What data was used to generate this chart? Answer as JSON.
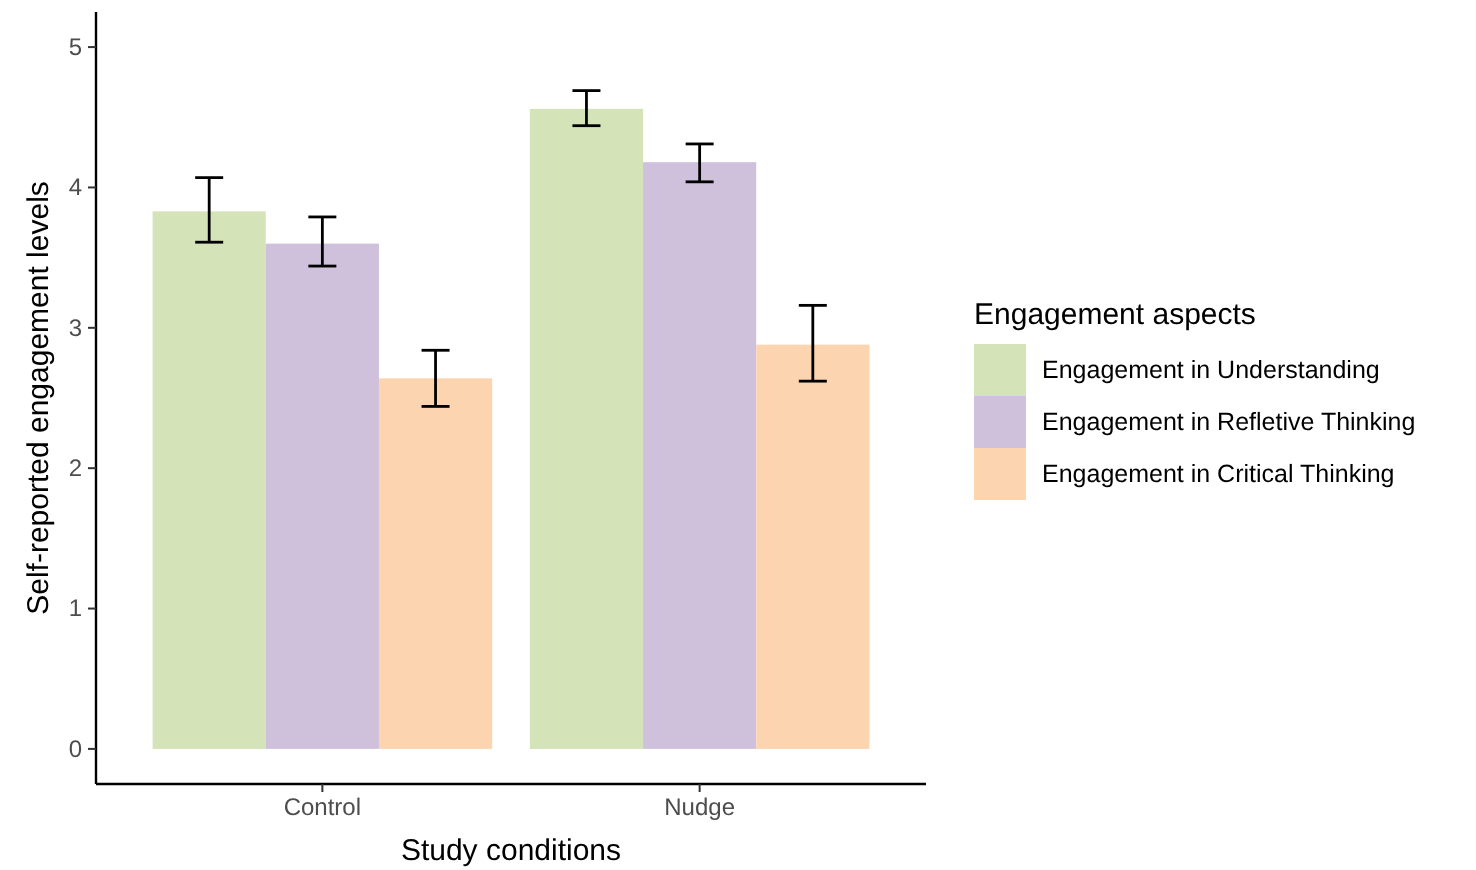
{
  "chart_data": {
    "type": "bar",
    "xlabel": "Study conditions",
    "ylabel": "Self-reported engagement levels",
    "legend_title": "Engagement aspects",
    "categories": [
      "Control",
      "Nudge"
    ],
    "series": [
      {
        "name": "Engagement in Understanding",
        "color": "#d5e4b8",
        "values": [
          3.83,
          4.56
        ],
        "errors": [
          [
            3.61,
            4.07
          ],
          [
            4.44,
            4.69
          ]
        ]
      },
      {
        "name": "Engagement in Refletive Thinking",
        "color": "#cfc1dc",
        "values": [
          3.6,
          4.18
        ],
        "errors": [
          [
            3.44,
            3.79
          ],
          [
            4.04,
            4.31
          ]
        ]
      },
      {
        "name": "Engagement in Critical Thinking",
        "color": "#fdd4b0",
        "values": [
          2.64,
          2.88
        ],
        "errors": [
          [
            2.44,
            2.84
          ],
          [
            2.62,
            3.16
          ]
        ]
      }
    ],
    "ylim": [
      -0.25,
      5.25
    ],
    "yticks": [
      0,
      1,
      2,
      3,
      4,
      5
    ],
    "grid": false,
    "legend": "right"
  }
}
